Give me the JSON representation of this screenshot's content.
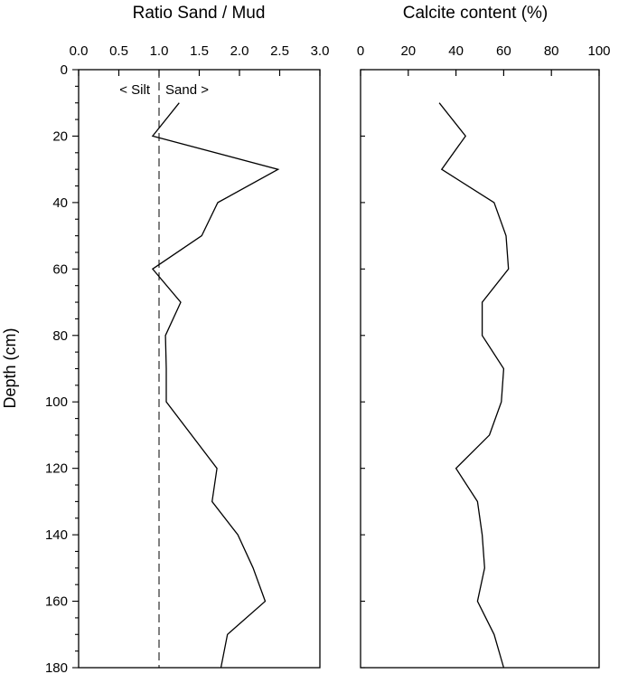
{
  "chart_data": [
    {
      "type": "line",
      "title": "Ratio Sand / Mud",
      "xlabel": "Ratio Sand / Mud",
      "ylabel": "Depth (cm)",
      "xlim": [
        0,
        3
      ],
      "ylim": [
        180,
        0
      ],
      "x_ticks": [
        "0.0",
        "0.5",
        "1.0",
        "1.5",
        "2.0",
        "2.5",
        "3.0"
      ],
      "y_ticks": [
        "0",
        "20",
        "40",
        "60",
        "80",
        "100",
        "120",
        "140",
        "160",
        "180"
      ],
      "grid": false,
      "reference_line": {
        "x": 1.0,
        "style": "dashed"
      },
      "annotations": [
        "< Silt",
        "Sand >"
      ],
      "series": [
        {
          "x": [
            1.25,
            0.92,
            2.48,
            1.73,
            1.53,
            0.92,
            1.27,
            1.08,
            1.09,
            1.09,
            1.72,
            1.66,
            1.98,
            2.17,
            2.32,
            1.85,
            1.77
          ],
          "y": [
            10,
            20,
            30,
            40,
            50,
            60,
            70,
            80,
            90,
            100,
            120,
            130,
            140,
            150,
            160,
            170,
            180
          ]
        }
      ]
    },
    {
      "type": "line",
      "title": "Calcite content (%)",
      "xlabel": "Calcite content (%)",
      "xlim": [
        0,
        100
      ],
      "ylim": [
        180,
        0
      ],
      "x_ticks": [
        "0",
        "20",
        "40",
        "60",
        "80",
        "100"
      ],
      "grid": false,
      "series": [
        {
          "x": [
            33,
            44,
            34,
            56,
            61,
            62,
            51,
            51,
            60,
            59,
            54,
            40,
            49,
            51,
            52,
            49,
            56,
            60
          ],
          "y": [
            10,
            20,
            30,
            40,
            50,
            60,
            70,
            80,
            90,
            100,
            110,
            120,
            130,
            140,
            150,
            160,
            170,
            180
          ]
        }
      ]
    }
  ]
}
